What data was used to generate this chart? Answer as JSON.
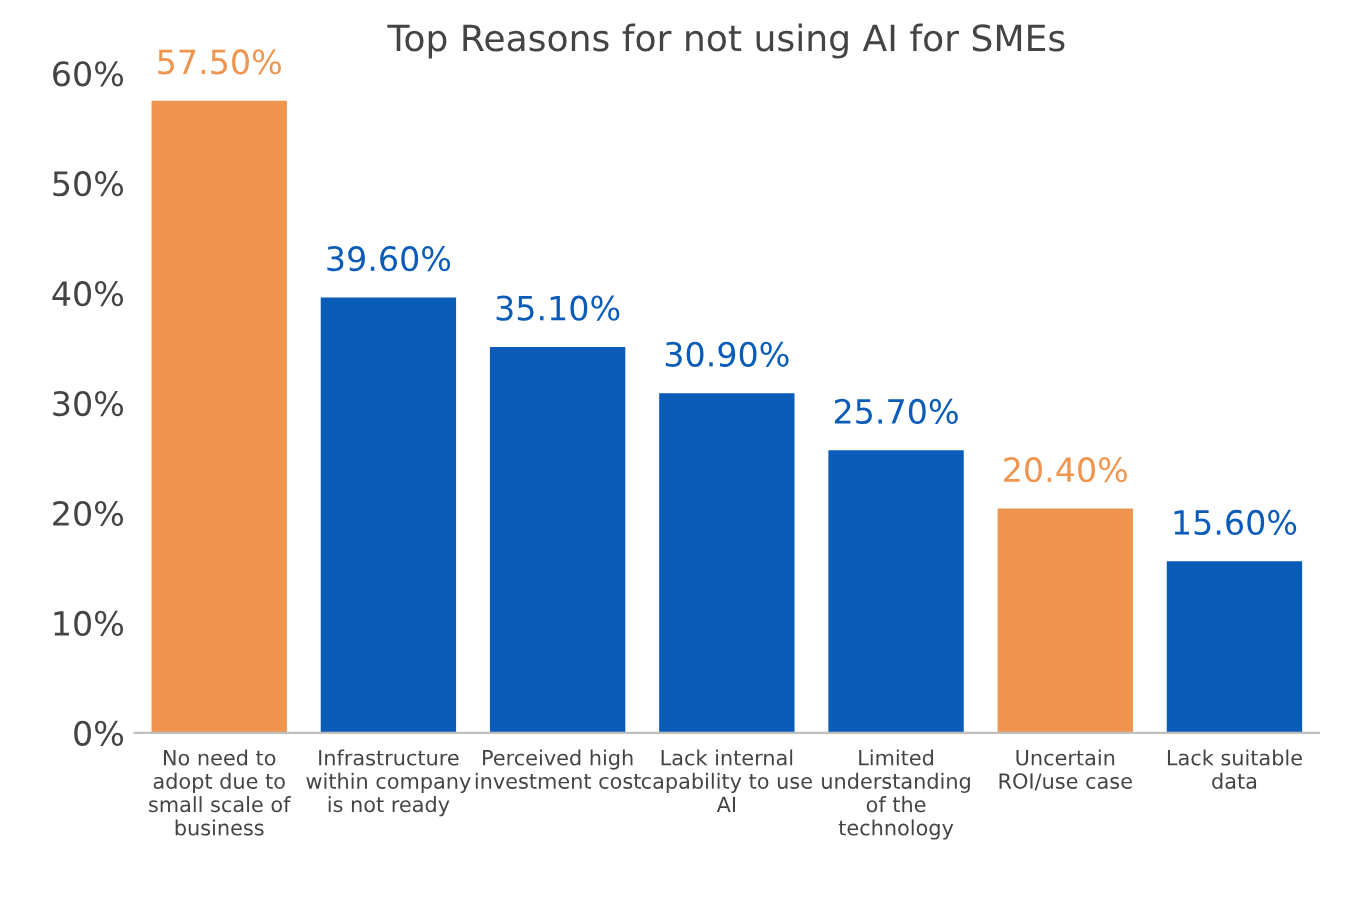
{
  "chart_data": {
    "type": "bar",
    "title": "Top Reasons for not using AI for SMEs",
    "categories": [
      "No need to\nadopt due to\nsmall scale of\nbusiness",
      "Infrastructure\nwithin company\nis not ready",
      "Perceived high\ninvestment cost",
      "Lack internal\ncapability to use\nAI",
      "Limited\nunderstanding\nof the\ntechnology",
      "Uncertain\nROI/use case",
      "Lack suitable\ndata"
    ],
    "values": [
      57.5,
      39.6,
      35.1,
      30.9,
      25.7,
      20.4,
      15.6
    ],
    "colors": [
      "#f0954f",
      "#0a5cb8",
      "#0a5cb8",
      "#0a5cb8",
      "#0a5cb8",
      "#f0954f",
      "#0a5cb8"
    ],
    "value_labels": [
      "57.50%",
      "39.60%",
      "35.10%",
      "30.90%",
      "25.70%",
      "20.40%",
      "15.60%"
    ],
    "ylim": [
      0,
      60
    ],
    "yticks": [
      {
        "value": 0,
        "label": "0%"
      },
      {
        "value": 10,
        "label": "10%"
      },
      {
        "value": 20,
        "label": "20%"
      },
      {
        "value": 30,
        "label": "30%"
      },
      {
        "value": 40,
        "label": "40%"
      },
      {
        "value": 50,
        "label": "50%"
      },
      {
        "value": 60,
        "label": "60%"
      }
    ],
    "grid": false
  }
}
